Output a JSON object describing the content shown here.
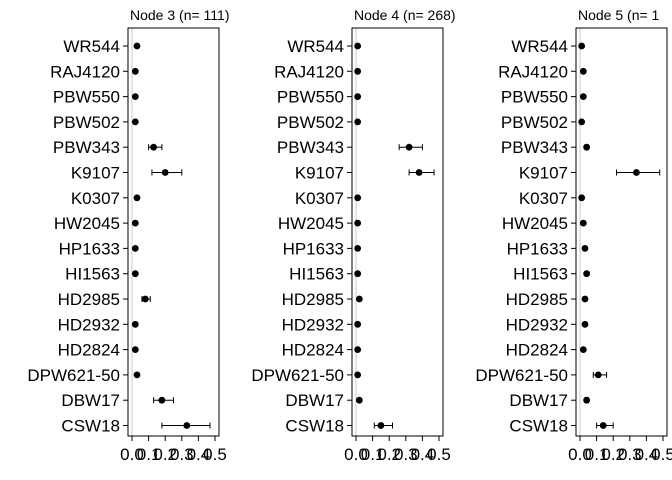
{
  "chart_data": {
    "type": "scatter",
    "xlim": [
      0,
      0.5
    ],
    "x_ticks": [
      "0.0",
      "0.1",
      "0.2",
      "0.3",
      "0.4",
      "0.5"
    ],
    "grid": false,
    "categories": [
      "WR544",
      "RAJ4120",
      "PBW550",
      "PBW502",
      "PBW343",
      "K9107",
      "K0307",
      "HW2045",
      "HP1633",
      "HI1563",
      "HD2985",
      "HD2932",
      "HD2824",
      "DPW621-50",
      "DBW17",
      "CSW18"
    ],
    "panels": [
      {
        "title": "Node 3 (n= 111)",
        "values": [
          0.03,
          0.02,
          0.02,
          0.02,
          0.13,
          0.2,
          0.03,
          0.02,
          0.02,
          0.02,
          0.08,
          0.02,
          0.02,
          0.03,
          0.18,
          0.33
        ],
        "ci_low": [
          0.03,
          0.02,
          0.02,
          0.02,
          0.1,
          0.12,
          0.03,
          0.02,
          0.02,
          0.02,
          0.06,
          0.02,
          0.02,
          0.03,
          0.13,
          0.18
        ],
        "ci_high": [
          0.03,
          0.02,
          0.02,
          0.02,
          0.18,
          0.3,
          0.03,
          0.02,
          0.02,
          0.02,
          0.11,
          0.02,
          0.02,
          0.03,
          0.25,
          0.47
        ]
      },
      {
        "title": "Node 4 (n= 268)",
        "values": [
          0.01,
          0.01,
          0.01,
          0.01,
          0.32,
          0.38,
          0.01,
          0.01,
          0.01,
          0.01,
          0.02,
          0.01,
          0.01,
          0.01,
          0.02,
          0.15
        ],
        "ci_low": [
          0.01,
          0.01,
          0.01,
          0.01,
          0.26,
          0.32,
          0.01,
          0.01,
          0.01,
          0.01,
          0.02,
          0.01,
          0.01,
          0.01,
          0.02,
          0.11
        ],
        "ci_high": [
          0.01,
          0.01,
          0.01,
          0.01,
          0.4,
          0.47,
          0.01,
          0.01,
          0.01,
          0.01,
          0.02,
          0.01,
          0.01,
          0.01,
          0.02,
          0.22
        ]
      },
      {
        "title": "Node 5 (n= 1",
        "values": [
          0.01,
          0.02,
          0.02,
          0.01,
          0.04,
          0.34,
          0.01,
          0.02,
          0.03,
          0.04,
          0.03,
          0.03,
          0.02,
          0.11,
          0.04,
          0.14
        ],
        "ci_low": [
          0.01,
          0.02,
          0.02,
          0.01,
          0.03,
          0.22,
          0.01,
          0.02,
          0.03,
          0.04,
          0.03,
          0.03,
          0.02,
          0.08,
          0.03,
          0.1
        ],
        "ci_high": [
          0.01,
          0.02,
          0.02,
          0.01,
          0.05,
          0.48,
          0.01,
          0.02,
          0.03,
          0.04,
          0.03,
          0.03,
          0.02,
          0.16,
          0.05,
          0.2
        ]
      }
    ]
  }
}
